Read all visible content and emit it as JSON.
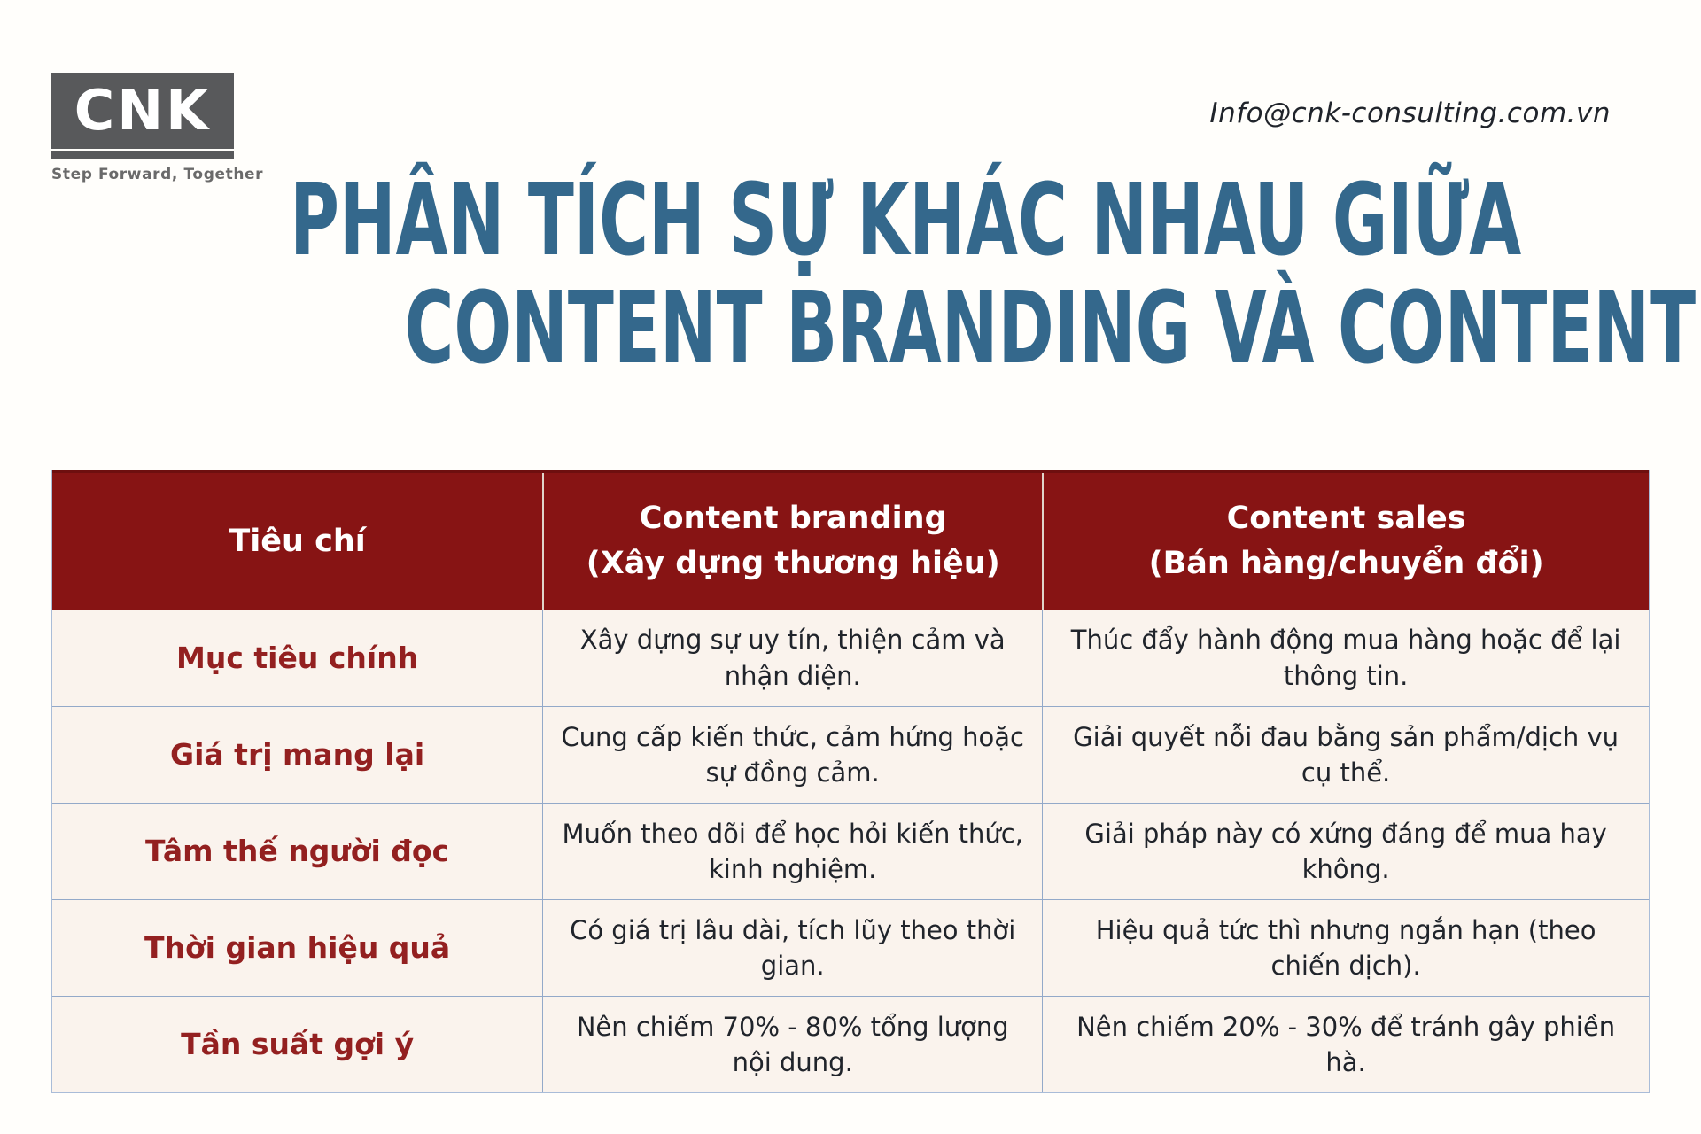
{
  "logo": {
    "text": "CNK",
    "tagline": "Step Forward, Together"
  },
  "contact_email": "Info@cnk-consulting.com.vn",
  "title": {
    "line1": "PHÂN TÍCH SỰ KHÁC NHAU GIỮA",
    "line2": "CONTENT BRANDING VÀ CONTENT BÁN HÀNG"
  },
  "colors": {
    "title_blue": "#34688c",
    "header_red": "#871414",
    "row_label_red": "#932020",
    "cell_background": "#faf3ed",
    "grid_border": "#93a9c9",
    "logo_gray": "#58595b"
  },
  "table": {
    "headers": [
      {
        "title": "Tiêu chí",
        "subtitle": ""
      },
      {
        "title": "Content branding",
        "subtitle": "(Xây dựng thương hiệu)"
      },
      {
        "title": "Content sales",
        "subtitle": "(Bán hàng/chuyển đổi)"
      }
    ],
    "rows": [
      {
        "criterion": "Mục tiêu chính",
        "branding": "Xây dựng sự uy tín, thiện cảm và nhận diện.",
        "sales": "Thúc đẩy hành động mua hàng hoặc để lại thông tin."
      },
      {
        "criterion": "Giá trị mang lại",
        "branding": "Cung cấp kiến thức, cảm hứng hoặc sự đồng cảm.",
        "sales": "Giải quyết nỗi đau bằng sản phẩm/dịch vụ cụ thể."
      },
      {
        "criterion": "Tâm thế người đọc",
        "branding": "Muốn theo dõi để học hỏi kiến thức, kinh nghiệm.",
        "sales": "Giải pháp này có xứng đáng để mua hay không."
      },
      {
        "criterion": "Thời gian hiệu quả",
        "branding": "Có giá trị lâu dài, tích lũy theo thời gian.",
        "sales": "Hiệu quả tức thì nhưng ngắn hạn (theo chiến dịch)."
      },
      {
        "criterion": "Tần suất gợi ý",
        "branding": "Nên chiếm 70% - 80% tổng lượng nội dung.",
        "sales": "Nên chiếm 20% - 30% để tránh gây phiền hà."
      }
    ]
  }
}
